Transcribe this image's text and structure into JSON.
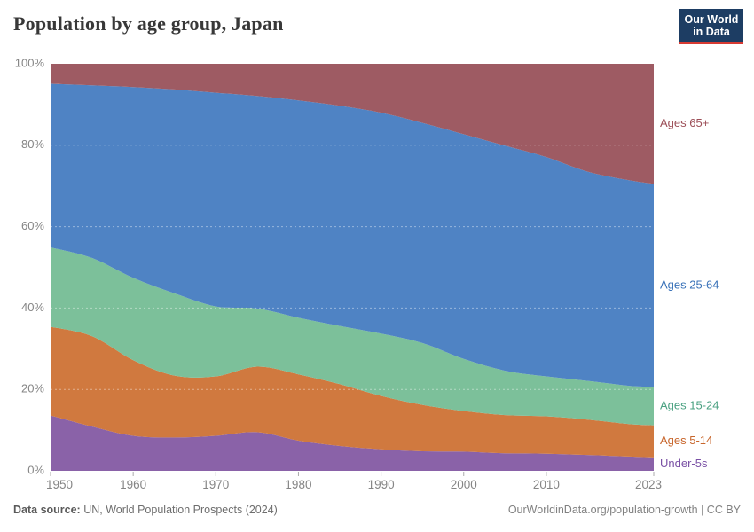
{
  "header": {
    "title": "Population by age group, Japan",
    "logo": {
      "line1": "Our World",
      "line2": "in Data"
    }
  },
  "footer": {
    "source_label": "Data source:",
    "source": " UN, World Population Prospects (2024)",
    "credit": "OurWorldinData.org/population-growth | CC BY"
  },
  "chart_data": {
    "type": "area",
    "stacked": true,
    "unit": "%",
    "title": "Population by age group, Japan",
    "x": [
      1950,
      1955,
      1960,
      1965,
      1970,
      1975,
      1980,
      1985,
      1990,
      1995,
      2000,
      2005,
      2010,
      2015,
      2020,
      2023
    ],
    "series": [
      {
        "name": "Under-5s",
        "fill": "#8a62a8",
        "label_color": "#7a51a5",
        "values": [
          13.6,
          10.9,
          8.6,
          8.2,
          8.6,
          9.5,
          7.4,
          6.1,
          5.3,
          4.8,
          4.7,
          4.3,
          4.2,
          3.9,
          3.5,
          3.3
        ]
      },
      {
        "name": "Ages 5-14",
        "fill": "#d0793f",
        "label_color": "#c8662c",
        "values": [
          21.8,
          22.2,
          18.6,
          15.2,
          14.6,
          16.1,
          16.3,
          15.2,
          13.1,
          11.4,
          10.0,
          9.4,
          9.2,
          8.7,
          8.0,
          7.9
        ]
      },
      {
        "name": "Ages 15-24",
        "fill": "#7cc09a",
        "label_color": "#4aa181",
        "values": [
          19.5,
          19.2,
          20.2,
          20.2,
          17.2,
          14.3,
          13.9,
          14.3,
          15.3,
          15.2,
          12.8,
          10.9,
          9.8,
          9.5,
          9.4,
          9.4
        ]
      },
      {
        "name": "Ages 25-64",
        "fill": "#4f83c4",
        "label_color": "#3871b8",
        "values": [
          40.2,
          42.4,
          46.9,
          50.1,
          52.5,
          52.2,
          53.4,
          54.1,
          54.3,
          54.1,
          55.2,
          55.3,
          53.9,
          51.4,
          50.5,
          49.9
        ]
      },
      {
        "name": "Ages 65+",
        "fill": "#9e5b63",
        "label_color": "#9c4e57",
        "values": [
          4.9,
          5.3,
          5.7,
          6.3,
          7.1,
          7.9,
          9.0,
          10.3,
          12.0,
          14.5,
          17.3,
          20.1,
          22.9,
          26.5,
          28.6,
          29.5
        ]
      }
    ],
    "ylim": [
      0,
      100
    ],
    "ytick_values": [
      0,
      20,
      40,
      60,
      80,
      100
    ],
    "ytick_labels": [
      "0%",
      "20%",
      "40%",
      "60%",
      "80%",
      "100%"
    ],
    "xtick_values": [
      1950,
      1960,
      1970,
      1980,
      1990,
      2000,
      2010,
      2023
    ],
    "legend_position": "right-edge-labels",
    "grid": "dashed-horizontal",
    "axis_text_color": "#858585"
  }
}
